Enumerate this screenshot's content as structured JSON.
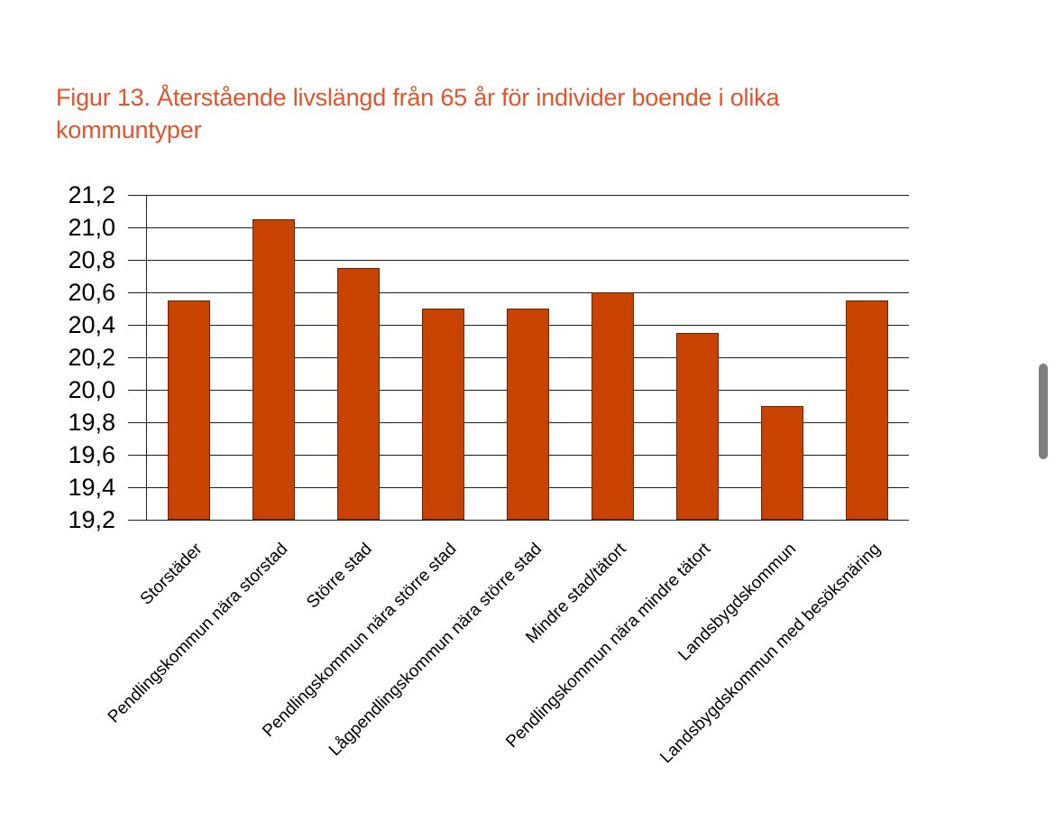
{
  "title": {
    "text": "Figur 13. Återstående livslängd från 65 år för individer boende i olika kommuntyper",
    "color": "#E2542A"
  },
  "scrollbar": {
    "color": "#7f7f7f"
  },
  "chart_data": {
    "type": "bar",
    "title": "Figur 13. Återstående livslängd från 65 år för individer boende i olika kommuntyper",
    "categories": [
      "Storstäder",
      "Pendlingskommun nära storstad",
      "Större stad",
      "Pendlingskommun nära större stad",
      "Lågpendlingskommun nära större stad",
      "Mindre stad/tätort",
      "Pendlingskommun nära mindre tätort",
      "Landsbygdskommun",
      "Landsbygdskommun med besöksnäring"
    ],
    "values": [
      20.55,
      21.05,
      20.75,
      20.5,
      20.5,
      20.6,
      20.35,
      19.9,
      20.55
    ],
    "xlabel": "",
    "ylabel": "",
    "ylim": [
      19.2,
      21.2
    ],
    "ytick_step": 0.2,
    "ytick_labels": [
      "21,2",
      "21,0",
      "20,8",
      "20,6",
      "20,4",
      "20,2",
      "20,0",
      "19,8",
      "19,6",
      "19,4",
      "19,2"
    ],
    "decimal_separator": ",",
    "grid": true,
    "legend": false,
    "bar_color": "#C84301",
    "grid_color": "#1f1f1f",
    "axis_color": "#1f1f1f",
    "label_color": "#000000"
  }
}
